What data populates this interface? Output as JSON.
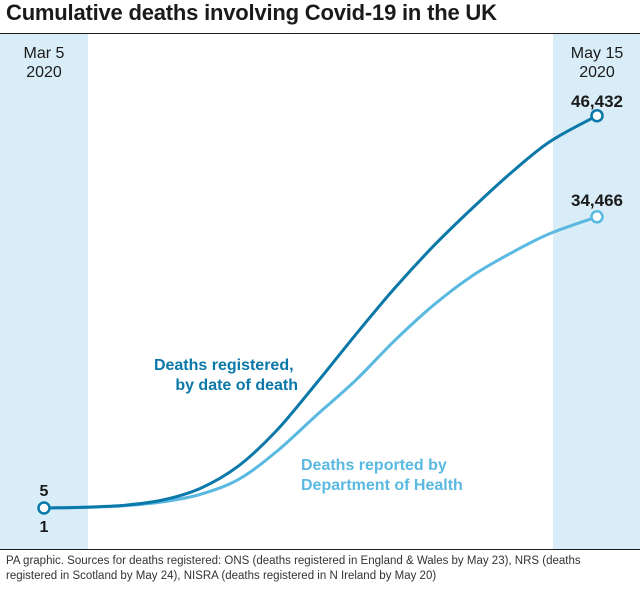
{
  "title": "Cumulative deaths involving Covid-19 in the UK",
  "source": "PA graphic. Sources for deaths registered: ONS (deaths registered in England & Wales by May 23), NRS (deaths registered in Scotland by May 24), NISRA (deaths registered in N Ireland by May 20)",
  "colors": {
    "registered": "#0a78a8",
    "reported": "#5ab9e1",
    "band": "#d9edf8",
    "text": "#1a1a1a"
  },
  "chart_data": {
    "type": "line",
    "title": "Cumulative deaths involving Covid-19 in the UK",
    "xlabel": "",
    "ylabel": "",
    "x_start": {
      "month": "Mar 5",
      "year": "2020"
    },
    "x_end": {
      "month": "May 15",
      "year": "2020"
    },
    "x": [
      "2020-03-05",
      "2020-03-10",
      "2020-03-15",
      "2020-03-20",
      "2020-03-25",
      "2020-03-30",
      "2020-04-04",
      "2020-04-09",
      "2020-04-14",
      "2020-04-19",
      "2020-04-24",
      "2020-04-29",
      "2020-05-04",
      "2020-05-09",
      "2020-05-15"
    ],
    "ylim": [
      0,
      50000
    ],
    "grid": false,
    "legend": "none",
    "series": [
      {
        "name": "Deaths registered, by date of death",
        "label_lines": [
          "Deaths registered,",
          "by date of death"
        ],
        "start_label": "5",
        "end_label": "46,432",
        "values": [
          5,
          100,
          300,
          900,
          2300,
          5000,
          9300,
          14800,
          20500,
          26000,
          31000,
          35500,
          39700,
          43400,
          46432
        ]
      },
      {
        "name": "Deaths reported by Department of Health",
        "label_lines": [
          "Deaths reported by",
          "Department of Health"
        ],
        "start_label": "1",
        "end_label": "34,466",
        "values": [
          1,
          60,
          250,
          700,
          1600,
          3400,
          6800,
          11000,
          15100,
          19800,
          24000,
          27500,
          30200,
          32500,
          34466
        ]
      }
    ]
  }
}
